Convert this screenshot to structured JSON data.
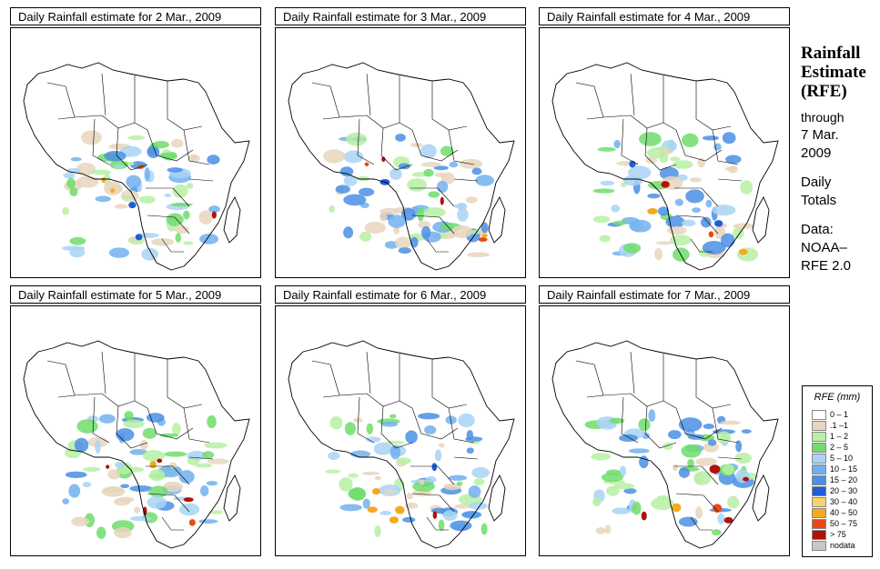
{
  "panels": [
    {
      "title": "Daily Rainfall estimate for  2 Mar., 2009"
    },
    {
      "title": "Daily Rainfall estimate for  3 Mar., 2009"
    },
    {
      "title": "Daily Rainfall estimate for  4 Mar., 2009"
    },
    {
      "title": "Daily Rainfall estimate for  5 Mar., 2009"
    },
    {
      "title": "Daily Rainfall estimate for  6 Mar., 2009"
    },
    {
      "title": "Daily Rainfall estimate for  7 Mar., 2009"
    }
  ],
  "side": {
    "title_lines": [
      "Rainfall",
      "Estimate",
      "(RFE)"
    ],
    "through_lines": [
      "through",
      "7 Mar.",
      "2009"
    ],
    "daily_lines": [
      "Daily",
      "Totals"
    ],
    "data_lines": [
      "Data:",
      "NOAA–",
      "RFE 2.0"
    ]
  },
  "legend": {
    "title": "RFE (mm)",
    "items": [
      {
        "label": "0 – 1",
        "color": "#ffffff"
      },
      {
        "label": ".1 –1",
        "color": "#e8d5bd"
      },
      {
        "label": "1 – 2",
        "color": "#b7f0a4"
      },
      {
        "label": "2 – 5",
        "color": "#6edd6b"
      },
      {
        "label": "5 – 10",
        "color": "#a9d3f4"
      },
      {
        "label": "10 – 15",
        "color": "#71b0ee"
      },
      {
        "label": "15 – 20",
        "color": "#4a8fe4"
      },
      {
        "label": "20 – 30",
        "color": "#1d5fd8"
      },
      {
        "label": "30 – 40",
        "color": "#f8d26b"
      },
      {
        "label": "40 – 50",
        "color": "#f6a81f"
      },
      {
        "label": "50 – 75",
        "color": "#ea4a12"
      },
      {
        "label": "> 75",
        "color": "#b0120a"
      },
      {
        "label": "nodata",
        "color": "#c8c8c8"
      }
    ]
  }
}
